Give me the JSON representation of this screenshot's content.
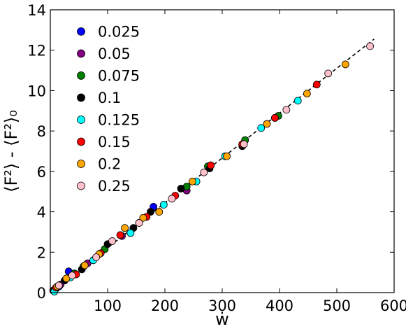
{
  "chart_data": {
    "type": "scatter",
    "title": "",
    "xlabel": "ẇ",
    "ylabel": "⟨F²⟩ - ⟨F²⟩₀",
    "xlim": [
      0,
      600
    ],
    "ylim": [
      0,
      14
    ],
    "xticks": [
      100,
      200,
      300,
      400,
      500,
      600
    ],
    "yticks": [
      0,
      2,
      4,
      6,
      8,
      10,
      12,
      14
    ],
    "grid": false,
    "legend_position": "upper-left",
    "fit_line": {
      "style": "dashed",
      "color": "#000000",
      "points": [
        [
          0,
          0
        ],
        [
          565,
          12.55
        ]
      ]
    },
    "series": [
      {
        "name": "0.025",
        "color": "#0000ff",
        "points": [
          [
            5,
            0.1
          ],
          [
            10,
            0.2
          ],
          [
            15,
            0.3
          ],
          [
            32,
            1.05
          ],
          [
            180,
            4.25
          ]
        ]
      },
      {
        "name": "0.05",
        "color": "#800080",
        "points": [
          [
            8,
            0.15
          ],
          [
            18,
            0.4
          ],
          [
            65,
            1.45
          ],
          [
            125,
            2.8
          ],
          [
            238,
            5.05
          ]
        ]
      },
      {
        "name": "0.075",
        "color": "#008000",
        "points": [
          [
            6,
            0.12
          ],
          [
            42,
            0.95
          ],
          [
            58,
            1.3
          ],
          [
            95,
            2.15
          ],
          [
            155,
            3.45
          ],
          [
            238,
            5.25
          ],
          [
            275,
            6.25
          ],
          [
            340,
            7.55
          ],
          [
            398,
            8.75
          ]
        ]
      },
      {
        "name": "0.1",
        "color": "#000000",
        "points": [
          [
            6,
            0.12
          ],
          [
            25,
            0.6
          ],
          [
            55,
            1.15
          ],
          [
            100,
            2.4
          ],
          [
            145,
            3.2
          ],
          [
            175,
            4.0
          ],
          [
            228,
            5.15
          ],
          [
            278,
            6.15
          ],
          [
            335,
            7.25
          ],
          [
            392,
            8.65
          ]
        ]
      },
      {
        "name": "0.125",
        "color": "#00ffff",
        "points": [
          [
            7,
            0.05
          ],
          [
            35,
            0.75
          ],
          [
            75,
            1.6
          ],
          [
            140,
            2.95
          ],
          [
            198,
            4.35
          ],
          [
            255,
            5.5
          ],
          [
            305,
            6.75
          ],
          [
            368,
            8.15
          ],
          [
            432,
            9.5
          ]
        ]
      },
      {
        "name": "0.15",
        "color": "#ff0000",
        "points": [
          [
            10,
            0.25
          ],
          [
            45,
            0.9
          ],
          [
            88,
            1.95
          ],
          [
            122,
            2.85
          ],
          [
            168,
            3.75
          ],
          [
            218,
            4.8
          ],
          [
            280,
            6.3
          ],
          [
            335,
            7.35
          ],
          [
            392,
            8.65
          ],
          [
            465,
            10.3
          ]
        ]
      },
      {
        "name": "0.2",
        "color": "#ffa500",
        "points": [
          [
            12,
            0.3
          ],
          [
            28,
            0.7
          ],
          [
            60,
            1.35
          ],
          [
            85,
            1.9
          ],
          [
            130,
            3.2
          ],
          [
            162,
            3.7
          ],
          [
            190,
            4.0
          ],
          [
            248,
            5.5
          ],
          [
            308,
            6.75
          ],
          [
            378,
            8.35
          ],
          [
            448,
            9.85
          ],
          [
            515,
            11.3
          ]
        ]
      },
      {
        "name": "0.25",
        "color": "#ffc0cb",
        "points": [
          [
            15,
            0.35
          ],
          [
            38,
            0.85
          ],
          [
            80,
            1.75
          ],
          [
            108,
            2.55
          ],
          [
            155,
            3.45
          ],
          [
            212,
            4.65
          ],
          [
            268,
            5.95
          ],
          [
            338,
            7.35
          ],
          [
            412,
            9.05
          ],
          [
            485,
            10.85
          ],
          [
            558,
            12.2
          ]
        ]
      }
    ]
  }
}
